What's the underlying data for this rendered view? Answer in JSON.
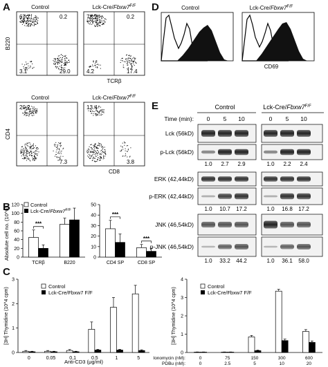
{
  "panel_letters": {
    "A": "A",
    "B": "B",
    "C": "C",
    "D": "D",
    "E": "E"
  },
  "groups": {
    "control": "Control",
    "ko_prefix": "Lck-Cre/",
    "ko_gene": "Fbxw7",
    "ko_sup": "F/F"
  },
  "panel_a": {
    "top_ylabel": "B220",
    "top_xlabel": "TCRβ",
    "bottom_ylabel": "CD4",
    "bottom_xlabel": "CD8",
    "top_control": [
      "67.7",
      "0.2",
      "3.1",
      "29.0"
    ],
    "top_ko": [
      "78.2",
      "0.2",
      "4.2",
      "17.4"
    ],
    "bottom_control": [
      "20.2",
      "7.3"
    ],
    "bottom_ko": [
      "13.4",
      "3.8"
    ]
  },
  "panel_d": {
    "xlabel": "CD69"
  },
  "panel_e": {
    "time_label": "Time (min):",
    "times": [
      "0",
      "5",
      "10",
      "0",
      "5",
      "10"
    ],
    "proteins": [
      "Lck (56kD)",
      "p-Lck (56kD)",
      "ERK (42,44kD)",
      "p-ERK (42,44kD)",
      "JNK (46,54kD)",
      "p-JNK (46,54kD)"
    ],
    "plck_ratios": [
      "1.0",
      "2.7",
      "2.9",
      "1.0",
      "2.2",
      "2.4"
    ],
    "perk_ratios": [
      "1.0",
      "10.7",
      "17.2",
      "1.0",
      "16.8",
      "17.2"
    ],
    "pjnk_ratios": [
      "1.0",
      "33.2",
      "44.2",
      "1.0",
      "36.1",
      "58.0"
    ]
  },
  "chart_data": [
    {
      "type": "bar",
      "panel": "B-left",
      "ylabel": "Absolute cell no. (10^6)",
      "ylim": [
        0,
        120
      ],
      "yticks": [
        "0",
        "20",
        "40",
        "60",
        "80",
        "100",
        "120"
      ],
      "categories": [
        "TCRβ",
        "B220"
      ],
      "series": [
        {
          "name": "Control",
          "values": [
            45,
            75
          ],
          "errors": [
            17,
            14
          ]
        },
        {
          "name": "Lck-Cre/Fbxw7 F/F",
          "values": [
            20,
            85
          ],
          "errors": [
            8,
            27
          ]
        }
      ],
      "significance": [
        {
          "category": "TCRβ",
          "label": "***"
        }
      ]
    },
    {
      "type": "bar",
      "panel": "B-right",
      "ylim": [
        0,
        50
      ],
      "yticks": [
        "0",
        "10",
        "20",
        "30",
        "40",
        "50"
      ],
      "categories": [
        "CD4 SP",
        "CD8 SP"
      ],
      "series": [
        {
          "name": "Control",
          "values": [
            27,
            9
          ],
          "errors": [
            8,
            3
          ]
        },
        {
          "name": "Lck-Cre/Fbxw7 F/F",
          "values": [
            14,
            5.5
          ],
          "errors": [
            8,
            3
          ]
        }
      ],
      "significance": [
        {
          "category": "CD4 SP",
          "label": "***"
        },
        {
          "category": "CD8 SP",
          "label": "***"
        }
      ]
    },
    {
      "type": "bar",
      "panel": "C-left",
      "ylabel": "[3H] Thymidine (10^4 cpm)",
      "xlabel": "Anti-CD3 (μg/ml)",
      "ylim": [
        0,
        3
      ],
      "yticks": [
        "0",
        "1",
        "2",
        "3"
      ],
      "categories": [
        "0",
        "0.05",
        "0.1",
        "0.5",
        "1",
        "5"
      ],
      "series": [
        {
          "name": "Control",
          "values": [
            0.05,
            0.05,
            0.08,
            0.95,
            1.85,
            2.4
          ],
          "errors": [
            0.03,
            0.03,
            0.04,
            0.3,
            0.4,
            0.35
          ]
        },
        {
          "name": "Lck-Cre/Fbxw7 F/F",
          "values": [
            0.03,
            0.03,
            0.03,
            0.1,
            0.1,
            0.08
          ],
          "errors": [
            0.02,
            0.02,
            0.02,
            0.03,
            0.03,
            0.03
          ]
        }
      ]
    },
    {
      "type": "bar",
      "panel": "C-right",
      "ylabel": "[3H] Thymidine (10^4 cpm)",
      "ylim": [
        0,
        4
      ],
      "yticks": [
        "0",
        "1",
        "2",
        "3",
        "4"
      ],
      "row_labels": [
        "Ionomycin (nM):",
        "PDBu (nM):"
      ],
      "categories": [
        "0|0",
        "75|2.5",
        "150|5",
        "300|10",
        "600|20"
      ],
      "ionomycin": [
        "0",
        "75",
        "150",
        "300",
        "600"
      ],
      "pdbu": [
        "0",
        "2.5",
        "5",
        "10",
        "20"
      ],
      "series": [
        {
          "name": "Control",
          "values": [
            0.02,
            0.02,
            0.85,
            3.35,
            1.15
          ],
          "errors": [
            0.01,
            0.01,
            0.08,
            0.1,
            0.1
          ]
        },
        {
          "name": "Lck-Cre/Fbxw7 F/F",
          "values": [
            0.02,
            0.02,
            0.1,
            0.65,
            0.55
          ],
          "errors": [
            0.01,
            0.01,
            0.03,
            0.08,
            0.08
          ]
        }
      ]
    }
  ]
}
